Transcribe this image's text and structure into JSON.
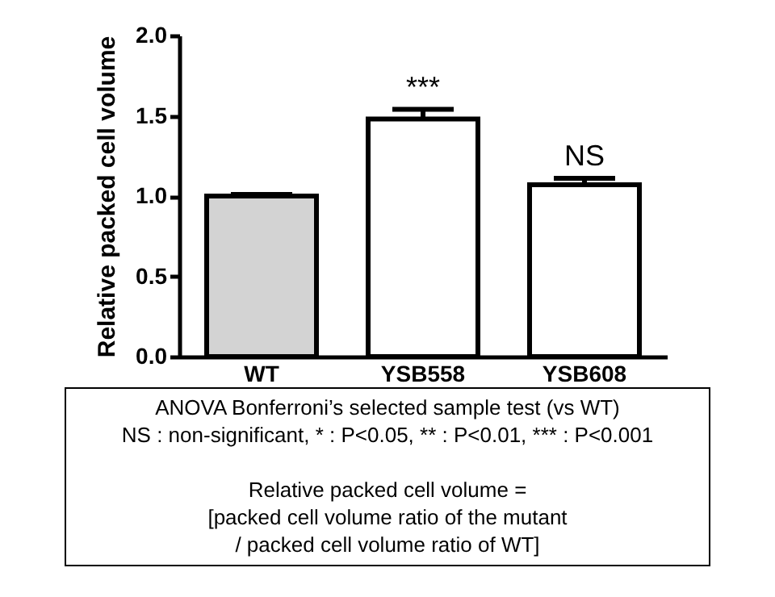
{
  "chart_data": {
    "type": "bar",
    "ylabel": "Relative packed cell volume",
    "categories": [
      "WT",
      "YSB558",
      "YSB608"
    ],
    "values": [
      1.0,
      1.48,
      1.07
    ],
    "errors": [
      0.01,
      0.06,
      0.04
    ],
    "colors": [
      "#d3d3d3",
      "#ffffff",
      "#ffffff"
    ],
    "ylim": [
      0,
      2
    ],
    "yticks": [
      {
        "value": 0,
        "label": "0.0"
      },
      {
        "value": 0.5,
        "label": "0.5"
      },
      {
        "value": 1,
        "label": "1.0"
      },
      {
        "value": 1.5,
        "label": "1.5"
      },
      {
        "value": 2,
        "label": "2.0"
      }
    ],
    "grid": false,
    "annotations": [
      {
        "text": "***",
        "x": "YSB558",
        "y": 1.58
      },
      {
        "text": "NS",
        "x": "YSB608",
        "y": 1.15
      },
      "ANOVA Bonferroni’s selected sample test (vs WT)",
      "NS : non-significant, * : P<0.05, ** : P<0.01, *** : P<0.001",
      "Relative packed cell volume =",
      "[packed cell volume ratio of the mutant",
      "/ packed cell volume ratio of WT]"
    ]
  }
}
